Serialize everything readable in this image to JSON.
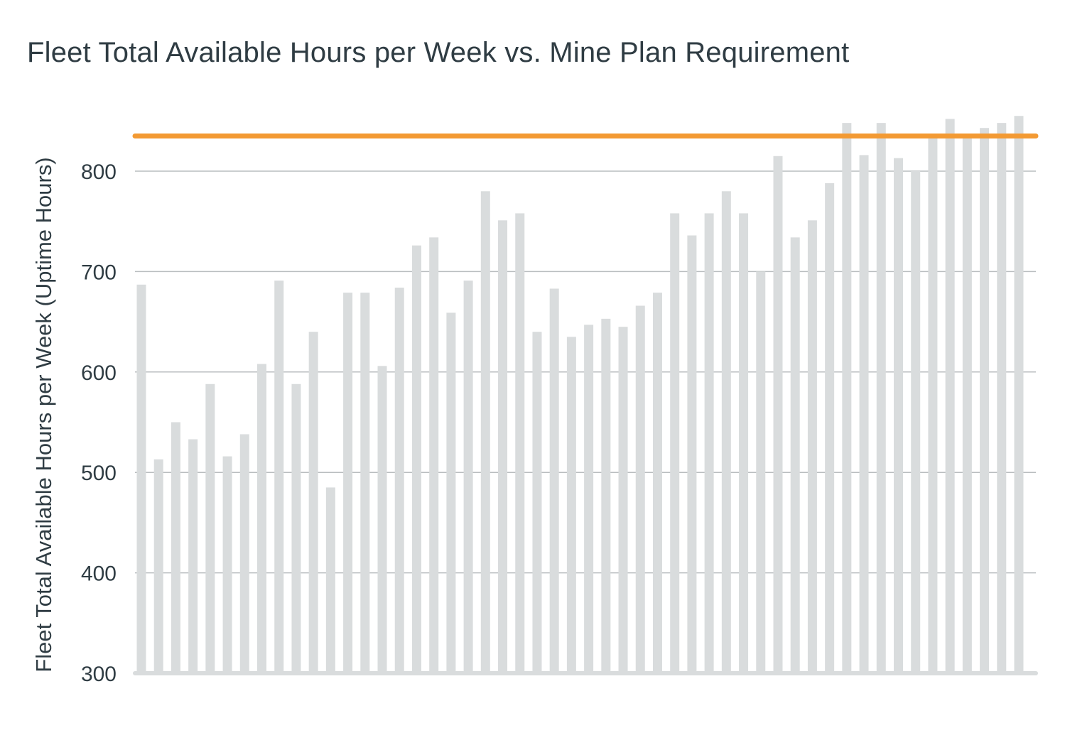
{
  "chart_data": {
    "type": "bar",
    "title": "Fleet Total Available Hours per Week vs. Mine Plan Requirement",
    "xlabel": "",
    "ylabel": "Fleet Total Available Hours per Week (Uptime Hours)",
    "ylim": [
      300,
      860
    ],
    "yticks": [
      300,
      400,
      500,
      600,
      700,
      800
    ],
    "grid": true,
    "legend": "none",
    "series": [
      {
        "type": "bar",
        "color": "#d9dcdd",
        "values": [
          687,
          513,
          550,
          533,
          588,
          516,
          538,
          608,
          691,
          588,
          640,
          485,
          679,
          679,
          606,
          684,
          726,
          734,
          659,
          691,
          780,
          751,
          758,
          640,
          683,
          635,
          647,
          653,
          645,
          666,
          679,
          758,
          736,
          758,
          780,
          758,
          700,
          815,
          734,
          751,
          788,
          848,
          816,
          848,
          813,
          800,
          836,
          852,
          836,
          843,
          848,
          855
        ]
      },
      {
        "type": "line",
        "color": "#f39a33",
        "value": 835
      }
    ]
  }
}
